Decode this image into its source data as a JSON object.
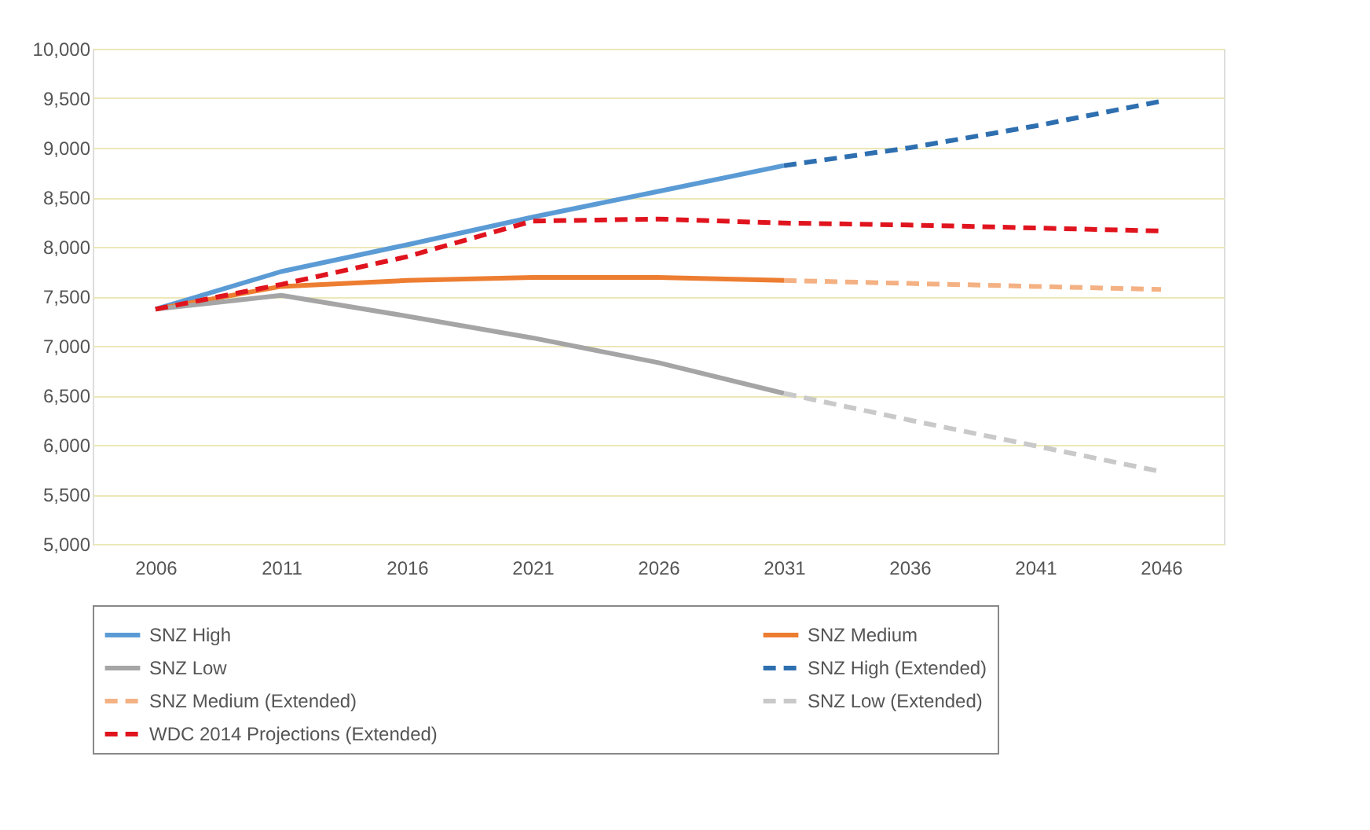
{
  "chart_data": {
    "type": "line",
    "categories": [
      "2006",
      "2011",
      "2016",
      "2021",
      "2026",
      "2031",
      "2036",
      "2041",
      "2046"
    ],
    "ylim": [
      5000,
      10000
    ],
    "yticks": [
      {
        "value": 5000,
        "label": "5,000"
      },
      {
        "value": 5500,
        "label": "5,500"
      },
      {
        "value": 6000,
        "label": "6,000"
      },
      {
        "value": 6500,
        "label": "6,500"
      },
      {
        "value": 7000,
        "label": "7,000"
      },
      {
        "value": 7500,
        "label": "7,500"
      },
      {
        "value": 8000,
        "label": "8,000"
      },
      {
        "value": 8500,
        "label": "8,500"
      },
      {
        "value": 9000,
        "label": "9,000"
      },
      {
        "value": 9500,
        "label": "9,500"
      },
      {
        "value": 10000,
        "label": "10,000"
      }
    ],
    "grid": "y",
    "legend": "bottom",
    "marker": "none",
    "series": [
      {
        "name": "SNZ High",
        "color": "#5b9bd5",
        "line_style": "solid",
        "values": [
          7370,
          7750,
          8020,
          8300,
          8560,
          8820,
          null,
          null,
          null
        ]
      },
      {
        "name": "SNZ Medium",
        "color": "#ed7d31",
        "line_style": "solid",
        "values": [
          7370,
          7600,
          7660,
          7690,
          7690,
          7660,
          null,
          null,
          null
        ]
      },
      {
        "name": "SNZ Low",
        "color": "#a5a5a5",
        "line_style": "solid",
        "values": [
          7370,
          7510,
          7300,
          7080,
          6830,
          6520,
          null,
          null,
          null
        ]
      },
      {
        "name": "SNZ High (Extended)",
        "color": "#2e6fb0",
        "line_style": "dashed",
        "values": [
          null,
          null,
          null,
          null,
          null,
          8820,
          9000,
          9220,
          9470
        ]
      },
      {
        "name": "SNZ Medium (Extended)",
        "color": "#f4b183",
        "line_style": "dashed",
        "values": [
          null,
          null,
          null,
          null,
          null,
          7660,
          7630,
          7600,
          7570
        ]
      },
      {
        "name": "SNZ Low (Extended)",
        "color": "#c9c9c9",
        "line_style": "dashed",
        "values": [
          null,
          null,
          null,
          null,
          null,
          6520,
          6250,
          5990,
          5730
        ]
      },
      {
        "name": "WDC 2014 Projections (Extended)",
        "color": "#e0141e",
        "line_style": "dashed",
        "values": [
          7370,
          7620,
          7900,
          8260,
          8280,
          8240,
          8220,
          8190,
          8160
        ]
      }
    ]
  }
}
